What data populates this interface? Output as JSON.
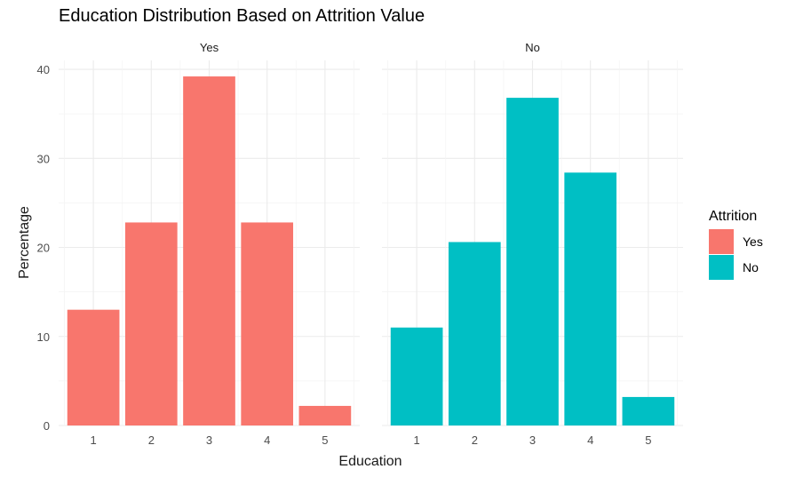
{
  "chart_data": {
    "type": "bar",
    "title": "Education Distribution Based on Attrition Value",
    "xlabel": "Education",
    "ylabel": "Percentage",
    "ylim": [
      0,
      41
    ],
    "yticks": [
      0,
      10,
      20,
      30,
      40
    ],
    "grid": true,
    "categories": [
      "1",
      "2",
      "3",
      "4",
      "5"
    ],
    "facets": [
      {
        "label": "Yes",
        "series": "Yes",
        "color": "#F8766D",
        "values": [
          13.0,
          22.8,
          39.2,
          22.8,
          2.2
        ]
      },
      {
        "label": "No",
        "series": "No",
        "color": "#00BFC4",
        "values": [
          11.0,
          20.6,
          36.8,
          28.4,
          3.2
        ]
      }
    ],
    "legend": {
      "title": "Attrition",
      "placement": "right",
      "entries": [
        {
          "label": "Yes",
          "color": "#F8766D"
        },
        {
          "label": "No",
          "color": "#00BFC4"
        }
      ]
    }
  }
}
